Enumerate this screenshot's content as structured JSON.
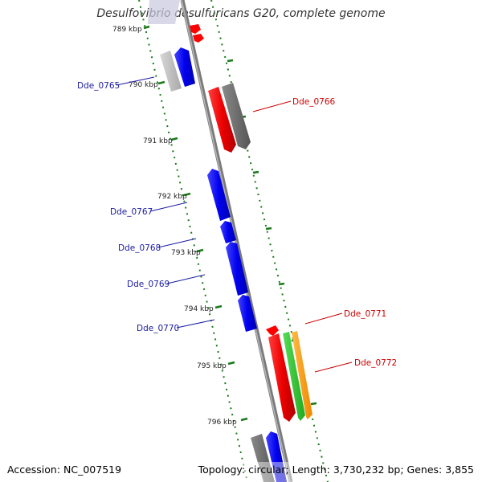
{
  "title": "Desulfovibrio desulfuricans G20, complete genome",
  "footer": {
    "accession": "Accession: NC_007519",
    "topology": "Topology: circular; Length: 3,730,232 bp; Genes: 3,855"
  },
  "colors": {
    "minus_strand_gene": "#0000ff",
    "plus_strand_gene": "#ff0000",
    "backbone": "#888888",
    "tick": "#1a7a1a",
    "gene_label_left": "#1a1aa0",
    "gene_label_right": "#cc0000"
  },
  "positions": {
    "ticks": [
      {
        "label": "789 kbp"
      },
      {
        "label": "790 kbp"
      },
      {
        "label": "791 kbp"
      },
      {
        "label": "792 kbp"
      },
      {
        "label": "793 kbp"
      },
      {
        "label": "794 kbp"
      },
      {
        "label": "795 kbp"
      },
      {
        "label": "796 kbp"
      }
    ]
  },
  "gene_labels": [
    {
      "id": "Dde_0765",
      "text": "Dde_0765",
      "side": "left"
    },
    {
      "id": "Dde_0766",
      "text": "Dde_0766",
      "side": "right"
    },
    {
      "id": "Dde_0767",
      "text": "Dde_0767",
      "side": "left"
    },
    {
      "id": "Dde_0768",
      "text": "Dde_0768",
      "side": "left"
    },
    {
      "id": "Dde_0769",
      "text": "Dde_0769",
      "side": "left"
    },
    {
      "id": "Dde_0770",
      "text": "Dde_0770",
      "side": "left"
    },
    {
      "id": "Dde_0771",
      "text": "Dde_0771",
      "side": "right"
    },
    {
      "id": "Dde_0772",
      "text": "Dde_0772",
      "side": "right"
    }
  ]
}
